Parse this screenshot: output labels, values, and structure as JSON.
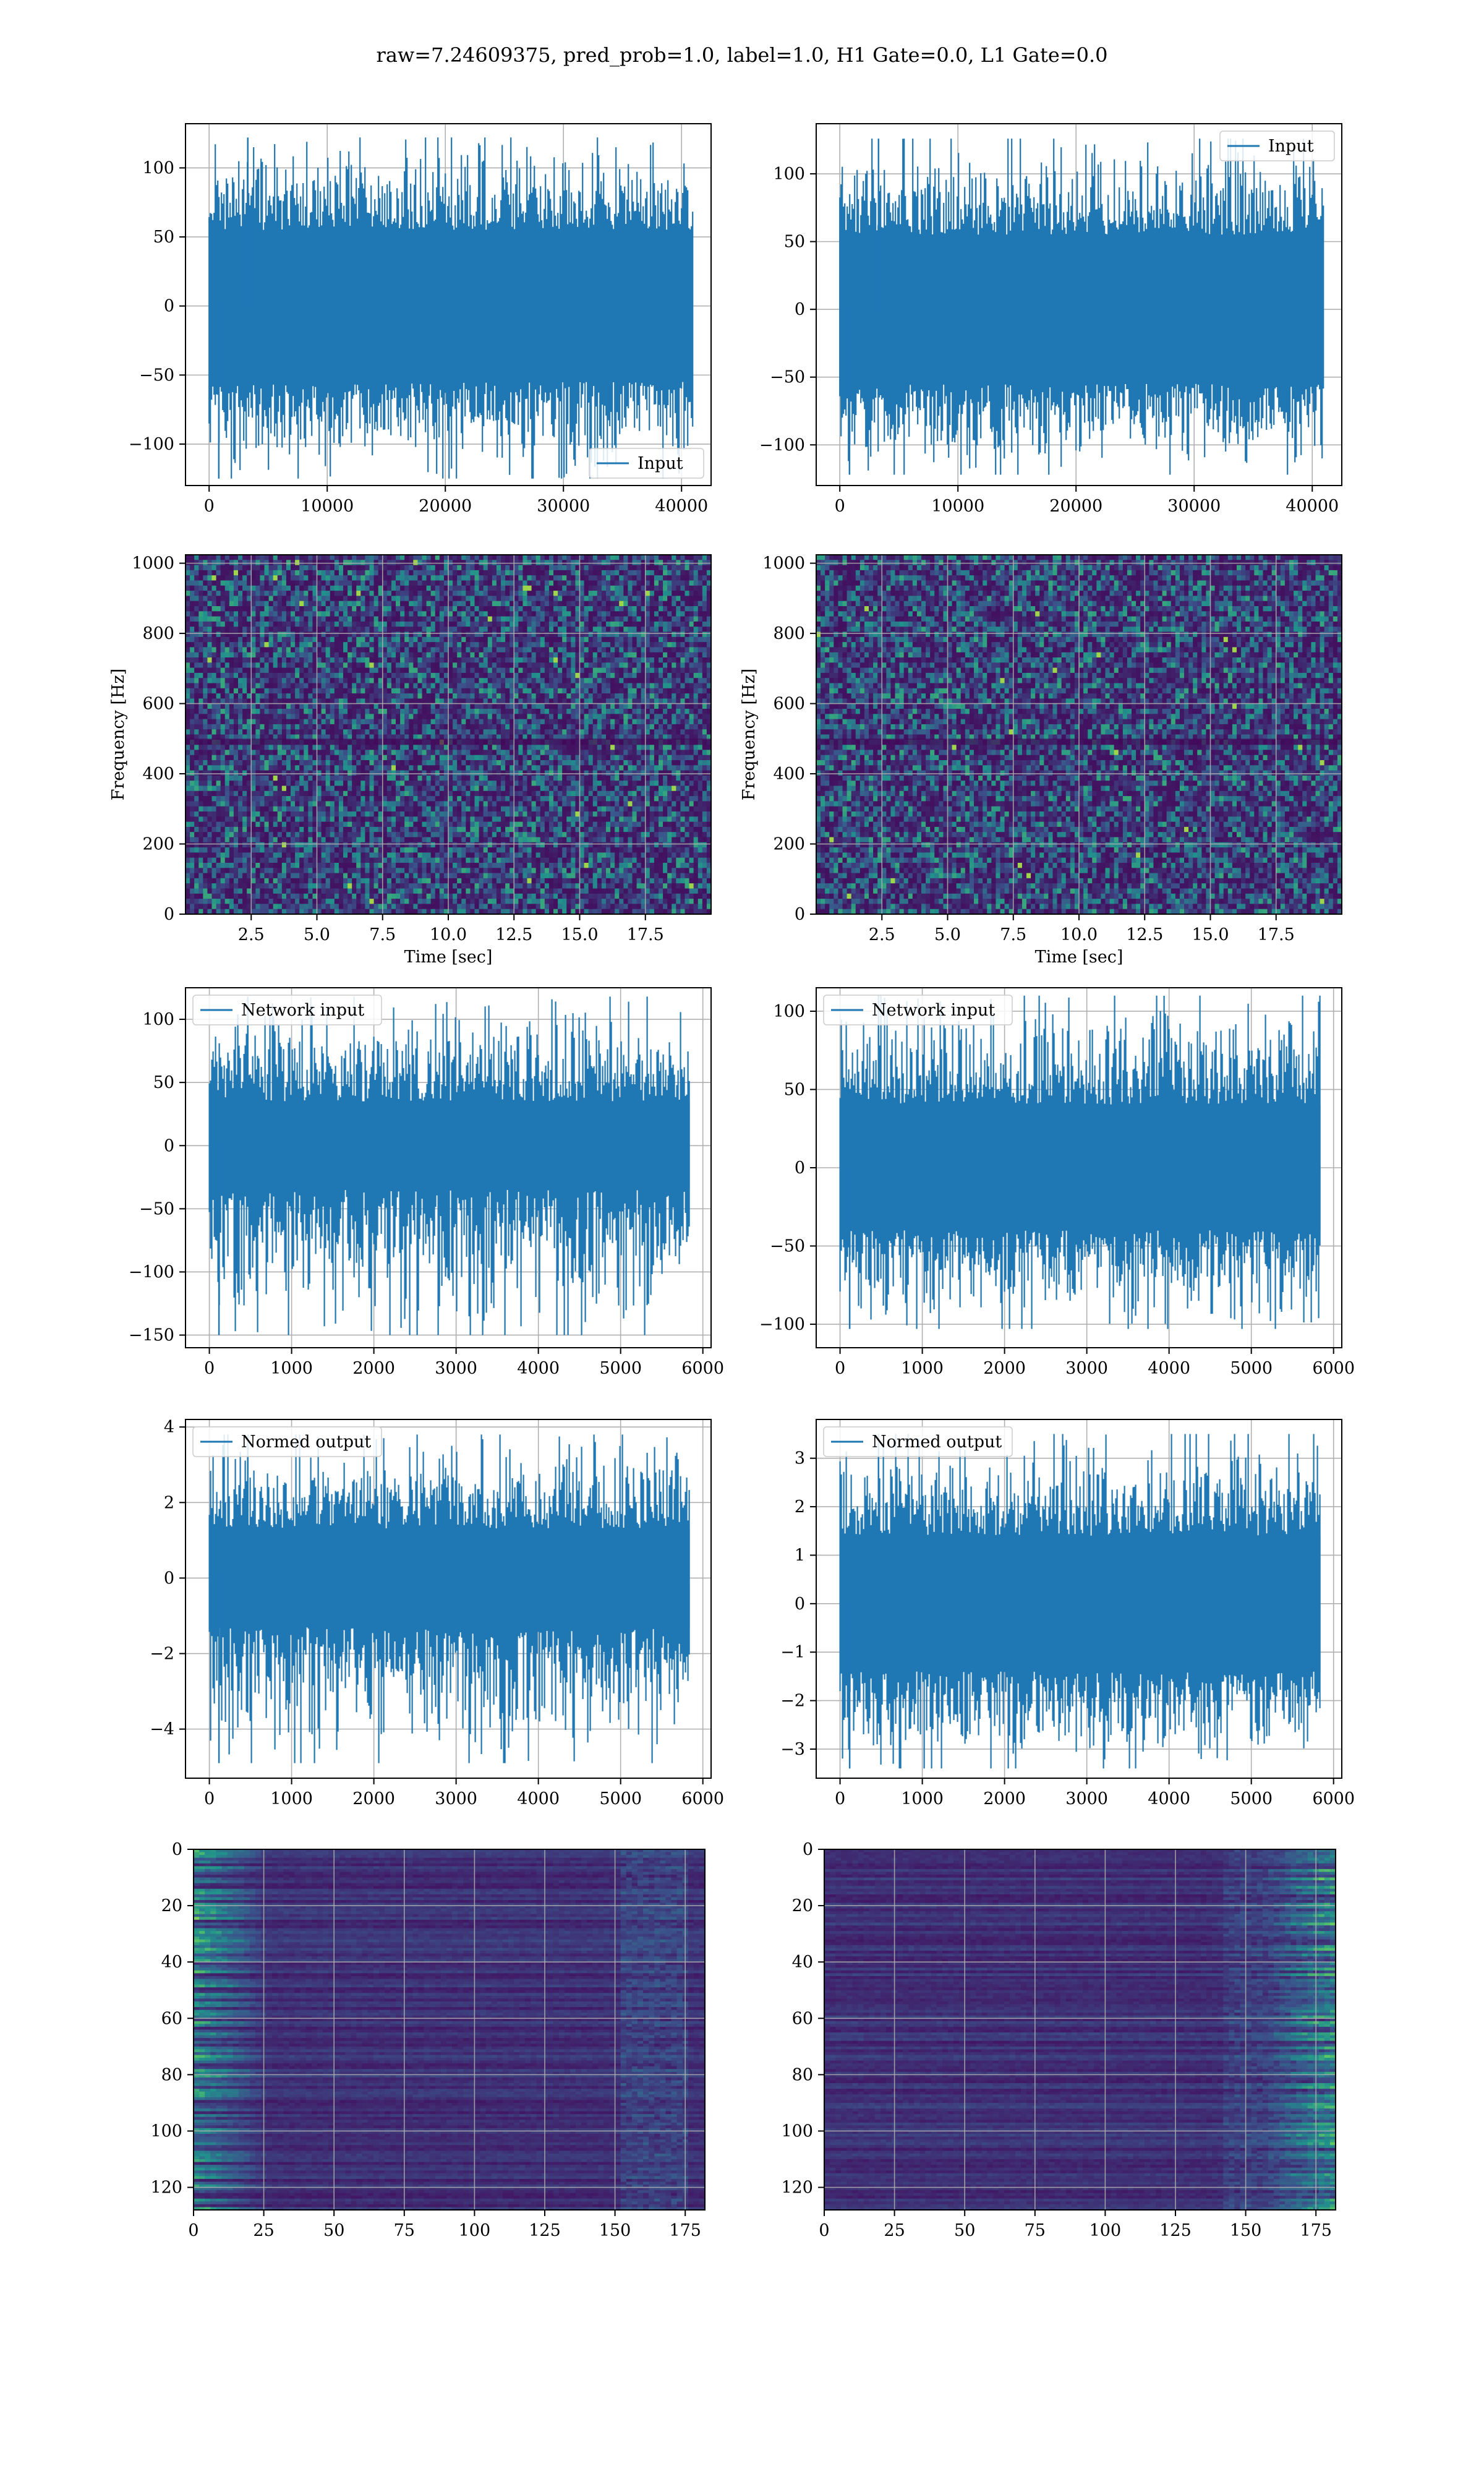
{
  "figure": {
    "title": "raw=7.24609375, pred_prob=1.0, label=1.0, H1 Gate=0.0, L1 Gate=0.0"
  },
  "colors": {
    "series": "#1f77b4",
    "grid": "#b0b0b0",
    "viridis": [
      "#440154",
      "#3b528b",
      "#21918c",
      "#5ec962",
      "#fde725"
    ]
  },
  "chart_data": [
    {
      "id": "input-h1",
      "type": "line",
      "legend": "Input",
      "legend_loc": "lower right",
      "xlim": [
        -2000,
        42500
      ],
      "ylim": [
        -130,
        132
      ],
      "xticks": [
        0,
        10000,
        20000,
        30000,
        40000
      ],
      "yticks": [
        -100,
        -50,
        0,
        50,
        100
      ],
      "xticklabels": [
        "0",
        "10000",
        "20000",
        "30000",
        "40000"
      ],
      "yticklabels": [
        "−100",
        "−50",
        "0",
        "50",
        "100"
      ],
      "signal": {
        "x_start": 0,
        "x_end": 40960,
        "n_points": 40960,
        "core_amp": 55,
        "peak_max": 122,
        "peak_min": -125
      },
      "grid": true,
      "xlabel": "",
      "ylabel": ""
    },
    {
      "id": "input-l1",
      "type": "line",
      "legend": "Input",
      "legend_loc": "upper right",
      "xlim": [
        -2000,
        42500
      ],
      "ylim": [
        -130,
        137
      ],
      "xticks": [
        0,
        10000,
        20000,
        30000,
        40000
      ],
      "yticks": [
        -100,
        -50,
        0,
        50,
        100
      ],
      "xticklabels": [
        "0",
        "10000",
        "20000",
        "30000",
        "40000"
      ],
      "yticklabels": [
        "−100",
        "−50",
        "0",
        "50",
        "100"
      ],
      "signal": {
        "x_start": 0,
        "x_end": 40960,
        "n_points": 40960,
        "core_amp": 55,
        "peak_max": 126,
        "peak_min": -122
      },
      "grid": true,
      "xlabel": "",
      "ylabel": ""
    },
    {
      "id": "spectrogram-h1",
      "type": "heatmap",
      "xlim": [
        0,
        20
      ],
      "ylim": [
        0,
        1024
      ],
      "xticks": [
        2.5,
        5.0,
        7.5,
        10.0,
        12.5,
        15.0,
        17.5
      ],
      "yticks": [
        0,
        200,
        400,
        600,
        800,
        1000
      ],
      "xticklabels": [
        "2.5",
        "5.0",
        "7.5",
        "10.0",
        "12.5",
        "15.0",
        "17.5"
      ],
      "yticklabels": [
        "0",
        "200",
        "400",
        "600",
        "800",
        "1000"
      ],
      "xlabel": "Time [sec]",
      "ylabel": "Frequency [Hz]",
      "colormap": "viridis",
      "grid": true
    },
    {
      "id": "spectrogram-l1",
      "type": "heatmap",
      "xlim": [
        0,
        20
      ],
      "ylim": [
        0,
        1024
      ],
      "xticks": [
        2.5,
        5.0,
        7.5,
        10.0,
        12.5,
        15.0,
        17.5
      ],
      "yticks": [
        0,
        200,
        400,
        600,
        800,
        1000
      ],
      "xticklabels": [
        "2.5",
        "5.0",
        "7.5",
        "10.0",
        "12.5",
        "15.0",
        "17.5"
      ],
      "yticklabels": [
        "0",
        "200",
        "400",
        "600",
        "800",
        "1000"
      ],
      "xlabel": "Time [sec]",
      "ylabel": "Frequency [Hz]",
      "colormap": "viridis",
      "grid": true
    },
    {
      "id": "network-input-h1",
      "type": "line",
      "legend": "Network input",
      "legend_loc": "upper left",
      "xlim": [
        -290,
        6100
      ],
      "ylim": [
        -160,
        125
      ],
      "xticks": [
        0,
        1000,
        2000,
        3000,
        4000,
        5000,
        6000
      ],
      "yticks": [
        -150,
        -100,
        -50,
        0,
        50,
        100
      ],
      "xticklabels": [
        "0",
        "1000",
        "2000",
        "3000",
        "4000",
        "5000",
        "6000"
      ],
      "yticklabels": [
        "−150",
        "−100",
        "−50",
        "0",
        "50",
        "100"
      ],
      "signal": {
        "x_start": 0,
        "x_end": 5840,
        "n_points": 5840,
        "core_amp": 35,
        "peak_max": 118,
        "peak_min": -150
      },
      "grid": true,
      "xlabel": "",
      "ylabel": ""
    },
    {
      "id": "network-input-l1",
      "type": "line",
      "legend": "Network input",
      "legend_loc": "upper left",
      "xlim": [
        -290,
        6100
      ],
      "ylim": [
        -115,
        115
      ],
      "xticks": [
        0,
        1000,
        2000,
        3000,
        4000,
        5000,
        6000
      ],
      "yticks": [
        -100,
        -50,
        0,
        50,
        100
      ],
      "xticklabels": [
        "0",
        "1000",
        "2000",
        "3000",
        "4000",
        "5000",
        "6000"
      ],
      "yticklabels": [
        "−100",
        "−50",
        "0",
        "50",
        "100"
      ],
      "signal": {
        "x_start": 0,
        "x_end": 5840,
        "n_points": 5840,
        "core_amp": 40,
        "peak_max": 110,
        "peak_min": -103
      },
      "grid": true,
      "xlabel": "",
      "ylabel": ""
    },
    {
      "id": "normed-output-h1",
      "type": "line",
      "legend": "Normed output",
      "legend_loc": "upper left",
      "xlim": [
        -290,
        6100
      ],
      "ylim": [
        -5.3,
        4.2
      ],
      "xticks": [
        0,
        1000,
        2000,
        3000,
        4000,
        5000,
        6000
      ],
      "yticks": [
        -4,
        -2,
        0,
        2,
        4
      ],
      "xticklabels": [
        "0",
        "1000",
        "2000",
        "3000",
        "4000",
        "5000",
        "6000"
      ],
      "yticklabels": [
        "−4",
        "−2",
        "0",
        "2",
        "4"
      ],
      "signal": {
        "x_start": 0,
        "x_end": 5840,
        "n_points": 5840,
        "core_amp": 1.3,
        "peak_max": 3.8,
        "peak_min": -4.9
      },
      "grid": true,
      "xlabel": "",
      "ylabel": ""
    },
    {
      "id": "normed-output-l1",
      "type": "line",
      "legend": "Normed output",
      "legend_loc": "upper left",
      "xlim": [
        -290,
        6100
      ],
      "ylim": [
        -3.6,
        3.8
      ],
      "xticks": [
        0,
        1000,
        2000,
        3000,
        4000,
        5000,
        6000
      ],
      "yticks": [
        -3,
        -2,
        -1,
        0,
        1,
        2,
        3
      ],
      "xticklabels": [
        "0",
        "1000",
        "2000",
        "3000",
        "4000",
        "5000",
        "6000"
      ],
      "yticklabels": [
        "−3",
        "−2",
        "−1",
        "0",
        "1",
        "2",
        "3"
      ],
      "signal": {
        "x_start": 0,
        "x_end": 5840,
        "n_points": 5840,
        "core_amp": 1.4,
        "peak_max": 3.5,
        "peak_min": -3.4
      },
      "grid": true,
      "xlabel": "",
      "ylabel": ""
    },
    {
      "id": "feature-map-h1",
      "type": "heatmap",
      "xlim": [
        0,
        182
      ],
      "ylim": [
        128,
        0
      ],
      "xticks": [
        0,
        25,
        50,
        75,
        100,
        125,
        150,
        175
      ],
      "yticks": [
        0,
        20,
        40,
        60,
        80,
        100,
        120
      ],
      "xticklabels": [
        "0",
        "25",
        "50",
        "75",
        "100",
        "125",
        "150",
        "175"
      ],
      "yticklabels": [
        "0",
        "20",
        "40",
        "60",
        "80",
        "100",
        "120"
      ],
      "colormap": "viridis",
      "grid": true,
      "bright_side": "left",
      "xlabel": "",
      "ylabel": ""
    },
    {
      "id": "feature-map-l1",
      "type": "heatmap",
      "xlim": [
        0,
        182
      ],
      "ylim": [
        128,
        0
      ],
      "xticks": [
        0,
        25,
        50,
        75,
        100,
        125,
        150,
        175
      ],
      "yticks": [
        0,
        20,
        40,
        60,
        80,
        100,
        120
      ],
      "xticklabels": [
        "0",
        "25",
        "50",
        "75",
        "100",
        "125",
        "150",
        "175"
      ],
      "yticklabels": [
        "0",
        "20",
        "40",
        "60",
        "80",
        "100",
        "120"
      ],
      "colormap": "viridis",
      "grid": true,
      "bright_side": "right",
      "xlabel": "",
      "ylabel": ""
    }
  ]
}
